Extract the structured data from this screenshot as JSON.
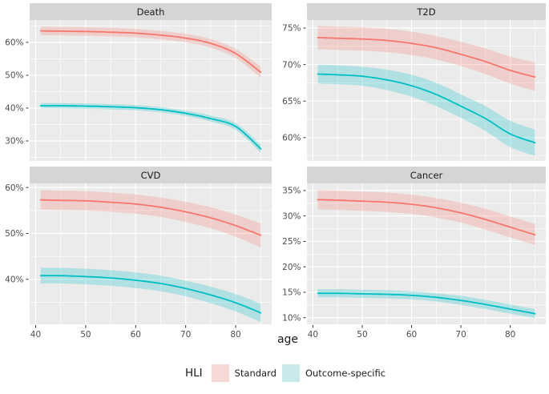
{
  "figure": {
    "xlabel": "age",
    "background": "#FFFFFF",
    "panel_background": "#EBEBEB",
    "strip_background": "#D5D5D5",
    "grid_color": "#FFFFFF",
    "axis_text_color": "#4D4D4D",
    "tick_mark_color": "#333333",
    "legend": {
      "title": "HLI",
      "position": "bottom",
      "items": [
        {
          "label": "Standard",
          "color": "#F8766D",
          "swatch_fill": "#F6D8D5"
        },
        {
          "label": "Outcome-specific",
          "color": "#00BFC4",
          "swatch_fill": "#C7E9EA"
        }
      ]
    }
  },
  "chart_data": [
    {
      "type": "line",
      "title": "Death",
      "x": [
        41,
        45,
        50,
        55,
        60,
        65,
        70,
        75,
        80,
        85
      ],
      "xlim": [
        38.8,
        87.2
      ],
      "xticks": [
        40,
        50,
        60,
        70,
        80
      ],
      "xticks_minor": [
        45,
        55,
        65,
        75,
        85
      ],
      "ylim": [
        23.9,
        66.8
      ],
      "yticks": [
        30,
        40,
        50,
        60
      ],
      "ytick_labels": [
        "30%",
        "40%",
        "50%",
        "60%"
      ],
      "yticks_minor": [
        25,
        35,
        45,
        55,
        65
      ],
      "grid": true,
      "series": [
        {
          "name": "Standard",
          "color": "#F8766D",
          "values": [
            63.5,
            63.4,
            63.3,
            63.1,
            62.8,
            62.2,
            61.3,
            59.7,
            56.6,
            50.9
          ],
          "lower": [
            62.2,
            62.1,
            62.0,
            61.8,
            61.5,
            60.9,
            60.0,
            58.4,
            55.2,
            49.2
          ],
          "upper": [
            64.8,
            64.7,
            64.6,
            64.4,
            64.1,
            63.5,
            62.6,
            61.0,
            58.0,
            52.6
          ]
        },
        {
          "name": "Outcome-specific",
          "color": "#00BFC4",
          "values": [
            40.7,
            40.7,
            40.6,
            40.4,
            40.1,
            39.5,
            38.4,
            36.8,
            34.4,
            27.6
          ],
          "lower": [
            39.9,
            39.9,
            39.8,
            39.6,
            39.3,
            38.7,
            37.6,
            35.9,
            33.4,
            26.4
          ],
          "upper": [
            41.5,
            41.5,
            41.4,
            41.2,
            40.9,
            40.3,
            39.2,
            37.7,
            35.4,
            28.8
          ]
        }
      ]
    },
    {
      "type": "line",
      "title": "T2D",
      "x": [
        41,
        45,
        50,
        55,
        60,
        65,
        70,
        75,
        80,
        85
      ],
      "xlim": [
        38.8,
        87.2
      ],
      "xticks": [
        40,
        50,
        60,
        70,
        80
      ],
      "xticks_minor": [
        45,
        55,
        65,
        75,
        85
      ],
      "ylim": [
        56.8,
        76.1
      ],
      "yticks": [
        60,
        65,
        70,
        75
      ],
      "ytick_labels": [
        "60%",
        "65%",
        "70%",
        "75%"
      ],
      "yticks_minor": [
        57.5,
        62.5,
        67.5,
        72.5
      ],
      "grid": true,
      "series": [
        {
          "name": "Standard",
          "color": "#F8766D",
          "values": [
            73.7,
            73.6,
            73.5,
            73.3,
            72.9,
            72.3,
            71.4,
            70.4,
            69.2,
            68.3
          ],
          "lower": [
            72.1,
            72.0,
            71.9,
            71.7,
            71.3,
            70.7,
            69.8,
            68.7,
            67.4,
            66.4
          ],
          "upper": [
            75.3,
            75.2,
            75.1,
            74.9,
            74.5,
            73.9,
            73.1,
            72.2,
            71.1,
            70.3
          ]
        },
        {
          "name": "Outcome-specific",
          "color": "#00BFC4",
          "values": [
            68.7,
            68.6,
            68.4,
            67.9,
            67.1,
            65.9,
            64.3,
            62.6,
            60.5,
            59.3
          ],
          "lower": [
            67.4,
            67.3,
            67.1,
            66.5,
            65.6,
            64.3,
            62.7,
            60.9,
            58.7,
            57.5
          ],
          "upper": [
            70.0,
            69.9,
            69.7,
            69.3,
            68.6,
            67.5,
            65.9,
            64.3,
            62.3,
            61.1
          ]
        }
      ]
    },
    {
      "type": "line",
      "title": "CVD",
      "x": [
        41,
        45,
        50,
        55,
        60,
        65,
        70,
        75,
        80,
        85
      ],
      "xlim": [
        38.8,
        87.2
      ],
      "xticks": [
        40,
        50,
        60,
        70,
        80
      ],
      "xticks_minor": [
        45,
        55,
        65,
        75,
        85
      ],
      "ylim": [
        30.2,
        60.9
      ],
      "yticks": [
        40,
        50,
        60
      ],
      "ytick_labels": [
        "40%",
        "50%",
        "60%"
      ],
      "yticks_minor": [
        35,
        45,
        55
      ],
      "grid": true,
      "series": [
        {
          "name": "Standard",
          "color": "#F8766D",
          "values": [
            57.3,
            57.2,
            57.1,
            56.8,
            56.4,
            55.7,
            54.7,
            53.4,
            51.7,
            49.6
          ],
          "lower": [
            55.2,
            55.1,
            55.0,
            54.7,
            54.3,
            53.6,
            52.5,
            51.1,
            49.3,
            47.0
          ],
          "upper": [
            59.4,
            59.3,
            59.2,
            58.9,
            58.5,
            57.8,
            56.9,
            55.7,
            54.1,
            52.2
          ]
        },
        {
          "name": "Outcome-specific",
          "color": "#00BFC4",
          "values": [
            40.8,
            40.8,
            40.6,
            40.3,
            39.8,
            39.1,
            38.0,
            36.6,
            34.9,
            32.7
          ],
          "lower": [
            39.1,
            39.1,
            38.9,
            38.6,
            38.1,
            37.4,
            36.3,
            34.8,
            33.0,
            30.7
          ],
          "upper": [
            42.5,
            42.5,
            42.3,
            42.0,
            41.5,
            40.8,
            39.7,
            38.4,
            36.8,
            34.7
          ]
        }
      ]
    },
    {
      "type": "line",
      "title": "Cancer",
      "x": [
        41,
        45,
        50,
        55,
        60,
        65,
        70,
        75,
        80,
        85
      ],
      "xlim": [
        38.8,
        87.2
      ],
      "xticks": [
        40,
        50,
        60,
        70,
        80
      ],
      "xticks_minor": [
        45,
        55,
        65,
        75,
        85
      ],
      "ylim": [
        8.7,
        36.4
      ],
      "yticks": [
        10,
        15,
        20,
        25,
        30,
        35
      ],
      "ytick_labels": [
        "10%",
        "15%",
        "20%",
        "25%",
        "30%",
        "35%"
      ],
      "yticks_minor": [
        12.5,
        17.5,
        22.5,
        27.5,
        32.5
      ],
      "grid": true,
      "series": [
        {
          "name": "Standard",
          "color": "#F8766D",
          "values": [
            33.2,
            33.1,
            32.9,
            32.7,
            32.3,
            31.6,
            30.6,
            29.3,
            27.8,
            26.3
          ],
          "lower": [
            31.3,
            31.2,
            31.0,
            30.8,
            30.4,
            29.7,
            28.7,
            27.3,
            25.8,
            24.3
          ],
          "upper": [
            35.1,
            35.0,
            34.8,
            34.6,
            34.2,
            33.5,
            32.6,
            31.4,
            29.9,
            28.4
          ]
        },
        {
          "name": "Outcome-specific",
          "color": "#00BFC4",
          "values": [
            14.8,
            14.8,
            14.7,
            14.6,
            14.4,
            14.0,
            13.4,
            12.6,
            11.7,
            10.8
          ],
          "lower": [
            14.0,
            14.0,
            13.9,
            13.8,
            13.6,
            13.2,
            12.5,
            11.7,
            10.8,
            9.9
          ],
          "upper": [
            15.6,
            15.6,
            15.5,
            15.4,
            15.2,
            14.8,
            14.3,
            13.5,
            12.6,
            11.7
          ]
        }
      ]
    }
  ]
}
